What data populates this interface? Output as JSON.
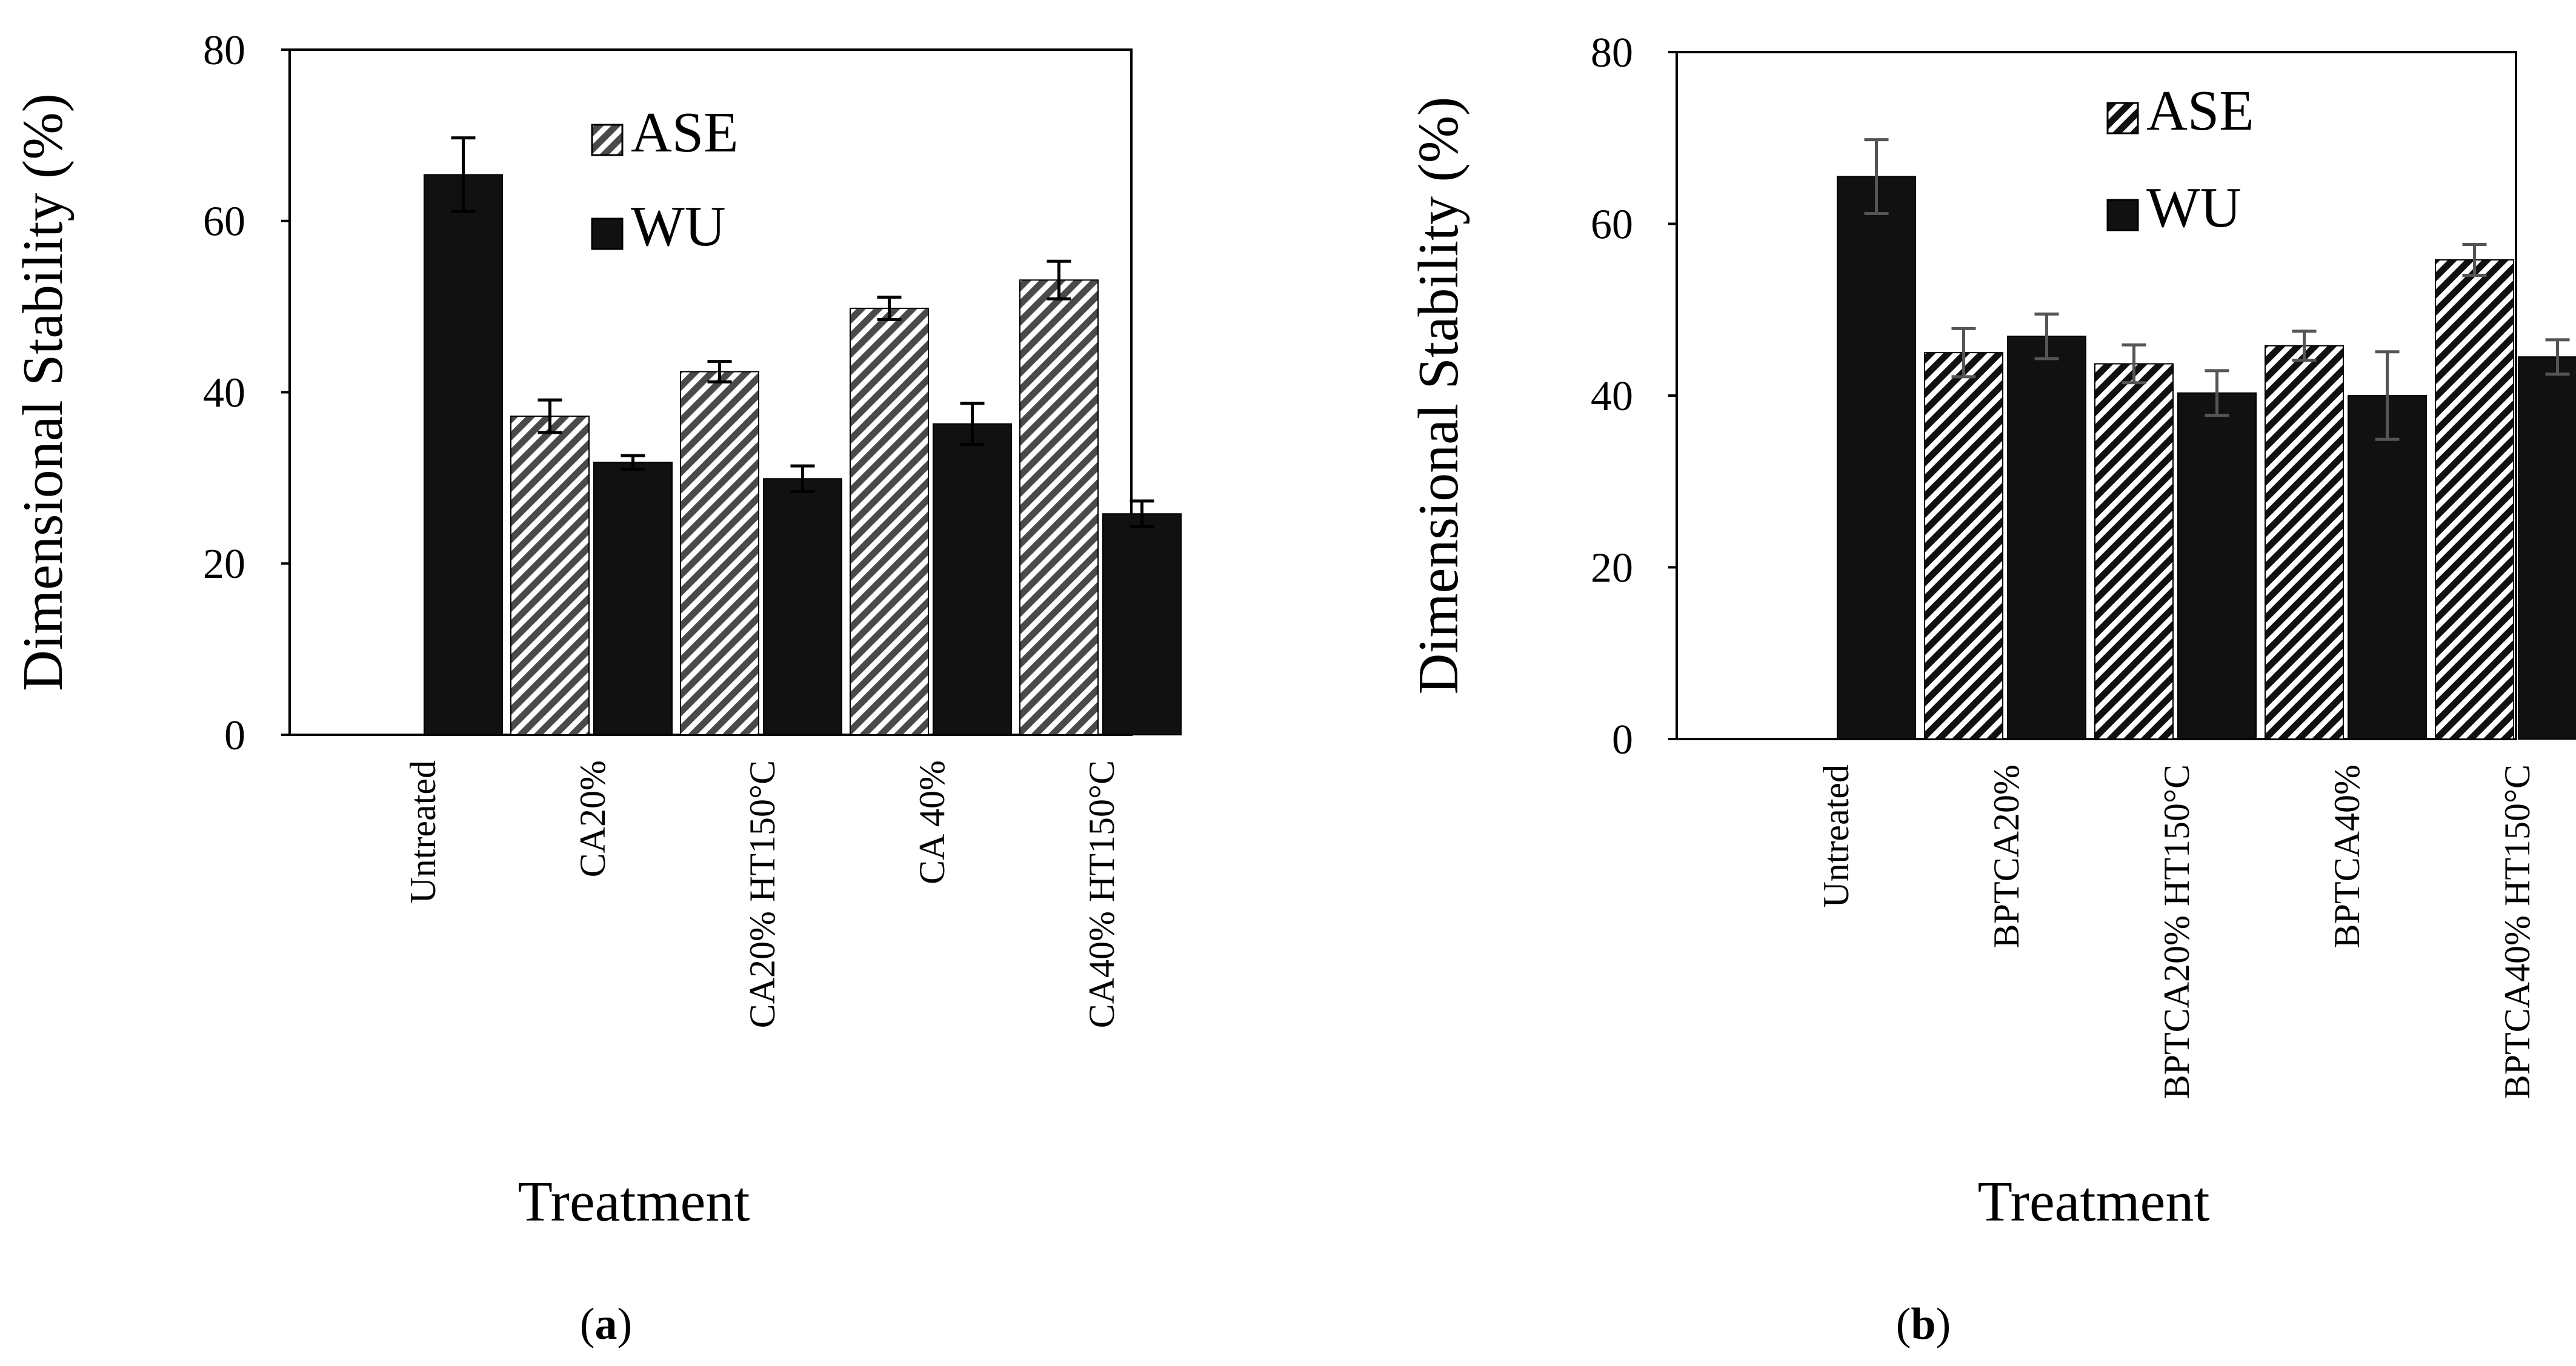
{
  "figure": {
    "colors": {
      "ase_fill": "#ffffff",
      "ase_hatch": "#4a4a4a",
      "ase_hatch_dark": "#111111",
      "wu_fill": "#111111",
      "axis": "#000000",
      "err_a": "#000000",
      "err_b": "#555555"
    }
  },
  "chart_data": [
    {
      "id": "a",
      "type": "bar",
      "panel_label": "(a)",
      "panel_letter": "a",
      "title": "",
      "xlabel": "Treatment",
      "ylabel": "Dimensional Stability (%)",
      "ylim": [
        0,
        80
      ],
      "yticks": [
        0,
        20,
        40,
        60,
        80
      ],
      "legend": {
        "placement": "top-center",
        "entries": [
          "ASE",
          "WU"
        ]
      },
      "categories": [
        "Untreated",
        "CA20%",
        "CA20% HT150°C",
        "CA 40%",
        "CA40% HT150°C"
      ],
      "series": [
        {
          "name": "ASE",
          "values": [
            null,
            37.2,
            42.4,
            49.8,
            53.1
          ],
          "errors": [
            null,
            1.9,
            1.2,
            1.3,
            2.2
          ]
        },
        {
          "name": "WU",
          "values": [
            65.4,
            31.8,
            29.9,
            36.3,
            25.8
          ],
          "errors": [
            4.3,
            0.8,
            1.5,
            2.4,
            1.5
          ]
        }
      ]
    },
    {
      "id": "b",
      "type": "bar",
      "panel_label": "(b)",
      "panel_letter": "b",
      "title": "",
      "xlabel": "Treatment",
      "ylabel": "Dimensional Stability (%)",
      "ylim": [
        0,
        80
      ],
      "yticks": [
        0,
        20,
        40,
        60,
        80
      ],
      "legend": {
        "placement": "top-center",
        "entries": [
          "ASE",
          "WU"
        ]
      },
      "categories": [
        "Untreated",
        "BPTCA20%",
        "BPTCA20% HT150°C",
        "BPTCA40%",
        "BPTCA40% HT150°C"
      ],
      "series": [
        {
          "name": "ASE",
          "values": [
            null,
            45.0,
            43.7,
            45.8,
            55.8
          ],
          "errors": [
            null,
            2.8,
            2.2,
            1.7,
            1.8
          ]
        },
        {
          "name": "WU",
          "values": [
            65.5,
            46.9,
            40.3,
            40.0,
            44.5
          ],
          "errors": [
            4.3,
            2.6,
            2.6,
            5.1,
            2.0
          ]
        }
      ]
    }
  ]
}
